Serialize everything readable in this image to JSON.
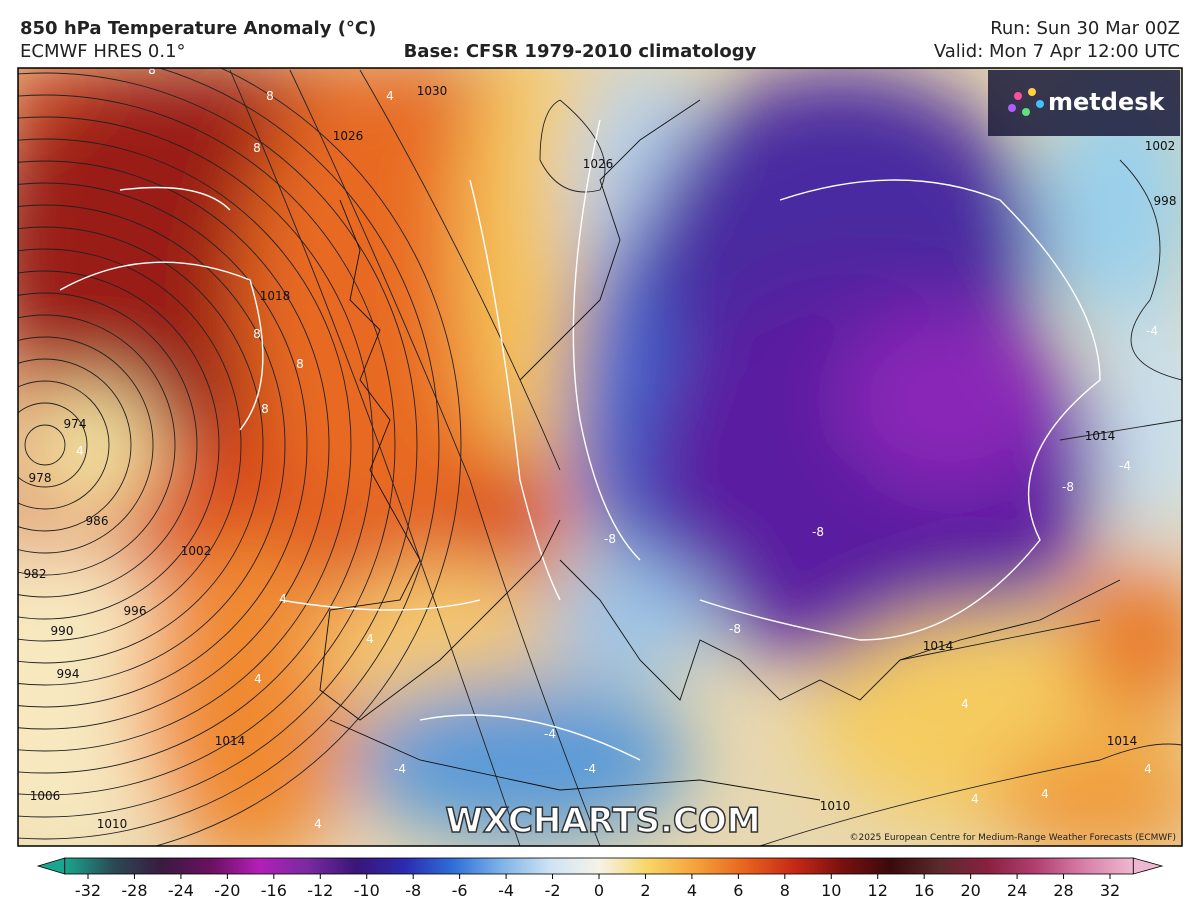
{
  "header": {
    "title": "850 hPa Temperature Anomaly (°C)",
    "model": "ECMWF HRES 0.1°",
    "base": "Base: CFSR 1979-2010 climatology",
    "run": "Run: Sun 30 Mar 00Z",
    "valid": "Valid: Mon 7 Apr 12:00 UTC"
  },
  "logo": "metdesk",
  "watermark": "WXCHARTS.COM",
  "copyright": "©2025 European Centre for Medium-Range Weather Forecasts (ECMWF)",
  "map": {
    "isobar_labels": [
      "1030",
      "1026",
      "1026",
      "1018",
      "974",
      "978",
      "986",
      "982",
      "990",
      "994",
      "996",
      "1002",
      "1014",
      "1006",
      "1010",
      "1010",
      "1014",
      "1014",
      "1014",
      "1002",
      "998"
    ],
    "anomaly_labels": [
      "8",
      "8",
      "8",
      "4",
      "8",
      "8",
      "8",
      "4",
      "4",
      "4",
      "4",
      "-4",
      "-4",
      "-4",
      "4",
      "-8",
      "-8",
      "-8",
      "-8",
      "-4",
      "-4",
      "4",
      "4",
      "4",
      "4"
    ]
  },
  "colorbar": {
    "ticks": [
      -32,
      -28,
      -24,
      -20,
      -16,
      -12,
      -10,
      -8,
      -6,
      -4,
      -2,
      0,
      2,
      4,
      6,
      8,
      10,
      12,
      16,
      20,
      24,
      28,
      32
    ],
    "colors": [
      "#1aa58f",
      "#2a4a55",
      "#3a1a40",
      "#6a1060",
      "#b21fb8",
      "#7a2aa0",
      "#3b1578",
      "#2c2ab0",
      "#2f6fd8",
      "#7fb3e8",
      "#cfe3f5",
      "#f5f3e8",
      "#f7d667",
      "#f5a23a",
      "#e8641e",
      "#c82a16",
      "#7a1010",
      "#3a0a0a",
      "#5a2a2a",
      "#8a2040",
      "#b04070",
      "#d880a8",
      "#f0b8d0"
    ]
  }
}
